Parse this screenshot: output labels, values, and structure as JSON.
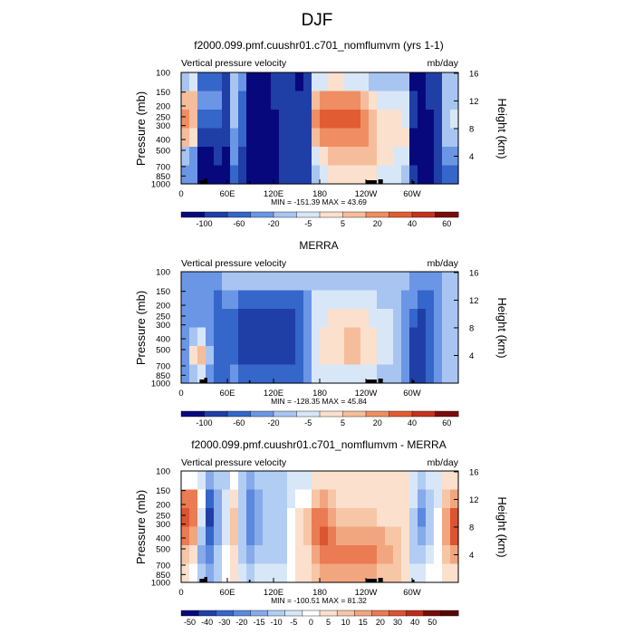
{
  "figure_title": "DJF",
  "chart_data": [
    {
      "type": "heatmap",
      "title": "f2000.099.pmf.cuushr01.c701_nomflumvm (yrs 1-1)",
      "left_label": "Vertical pressure velocity",
      "right_label": "mb/day",
      "ylabel": "Pressure (mb)",
      "ylabel_right": "Height (km)",
      "yticks": [
        "100",
        "150",
        "200",
        "250",
        "300",
        "400",
        "500",
        "700",
        "850",
        "1000"
      ],
      "yticks_right": [
        "4",
        "8",
        "12",
        "16"
      ],
      "xticks": [
        "0",
        "60E",
        "120E",
        "180",
        "120W",
        "60W"
      ],
      "stats": "MIN = -151.39   MAX = 43.69",
      "colorbar_labels": [
        "-100",
        "-60",
        "-20",
        "-5",
        "5",
        "20",
        "40",
        "60"
      ],
      "field": [
        [
          4,
          5,
          2,
          2,
          2,
          1,
          4,
          3,
          0,
          0,
          0,
          1,
          1,
          1,
          0,
          1,
          5,
          5,
          6,
          6,
          5,
          5,
          5,
          4,
          4,
          4,
          4,
          4,
          0,
          0,
          1,
          1,
          4,
          4
        ],
        [
          7,
          7,
          3,
          3,
          3,
          1,
          4,
          2,
          0,
          0,
          0,
          1,
          1,
          1,
          1,
          1,
          7,
          8,
          8,
          8,
          8,
          8,
          7,
          6,
          5,
          5,
          5,
          5,
          1,
          0,
          1,
          1,
          4,
          4
        ],
        [
          8,
          7,
          2,
          2,
          2,
          1,
          4,
          2,
          0,
          0,
          0,
          0,
          1,
          1,
          1,
          1,
          8,
          9,
          9,
          9,
          9,
          9,
          8,
          7,
          6,
          6,
          6,
          5,
          1,
          0,
          0,
          1,
          4,
          5
        ],
        [
          7,
          6,
          1,
          1,
          1,
          1,
          3,
          2,
          0,
          0,
          0,
          0,
          1,
          1,
          1,
          1,
          7,
          8,
          8,
          8,
          8,
          8,
          8,
          7,
          6,
          6,
          6,
          6,
          0,
          0,
          0,
          1,
          4,
          4
        ],
        [
          4,
          3,
          0,
          0,
          1,
          0,
          3,
          1,
          0,
          0,
          0,
          0,
          1,
          1,
          1,
          1,
          5,
          6,
          7,
          7,
          7,
          7,
          7,
          7,
          6,
          6,
          5,
          5,
          0,
          0,
          0,
          1,
          3,
          3
        ],
        [
          3,
          3,
          0,
          0,
          0,
          0,
          2,
          1,
          0,
          0,
          0,
          0,
          1,
          1,
          1,
          1,
          4,
          5,
          6,
          6,
          6,
          6,
          6,
          6,
          5,
          5,
          5,
          4,
          1,
          0,
          0,
          1,
          2,
          2
        ]
      ]
    },
    {
      "type": "heatmap",
      "title": "MERRA",
      "left_label": "Vertical pressure velocity",
      "right_label": "mb/day",
      "ylabel": "Pressure (mb)",
      "ylabel_right": "Height (km)",
      "yticks": [
        "100",
        "150",
        "200",
        "250",
        "300",
        "400",
        "500",
        "700",
        "850",
        "1000"
      ],
      "yticks_right": [
        "4",
        "8",
        "12",
        "16"
      ],
      "xticks": [
        "0",
        "60E",
        "120E",
        "180",
        "120W",
        "60W"
      ],
      "stats": "MIN = -128.35   MAX = 45.84",
      "colorbar_labels": [
        "-100",
        "-60",
        "-20",
        "-5",
        "5",
        "20",
        "40",
        "60"
      ],
      "field": [
        [
          3,
          3,
          3,
          3,
          3,
          4,
          4,
          4,
          4,
          4,
          4,
          4,
          4,
          4,
          4,
          4,
          4,
          4,
          4,
          4,
          4,
          4,
          4,
          4,
          4,
          4,
          4,
          4,
          3,
          3,
          3,
          3,
          4,
          4
        ],
        [
          3,
          3,
          3,
          3,
          2,
          3,
          3,
          2,
          2,
          2,
          2,
          2,
          2,
          2,
          2,
          3,
          5,
          5,
          5,
          5,
          5,
          5,
          5,
          5,
          4,
          4,
          4,
          3,
          3,
          2,
          2,
          3,
          4,
          4
        ],
        [
          3,
          3,
          3,
          3,
          2,
          2,
          2,
          1,
          1,
          1,
          1,
          1,
          1,
          1,
          2,
          3,
          5,
          5,
          6,
          6,
          6,
          6,
          6,
          5,
          5,
          5,
          4,
          3,
          2,
          1,
          2,
          3,
          4,
          4
        ],
        [
          3,
          4,
          5,
          3,
          2,
          2,
          2,
          1,
          1,
          1,
          1,
          1,
          1,
          1,
          2,
          3,
          5,
          6,
          6,
          6,
          7,
          7,
          6,
          6,
          5,
          5,
          4,
          3,
          1,
          1,
          2,
          3,
          4,
          4
        ],
        [
          3,
          6,
          7,
          4,
          2,
          2,
          2,
          1,
          1,
          1,
          1,
          1,
          1,
          1,
          2,
          3,
          5,
          6,
          6,
          6,
          7,
          7,
          6,
          6,
          5,
          5,
          4,
          3,
          1,
          1,
          2,
          3,
          4,
          4
        ],
        [
          3,
          4,
          5,
          3,
          2,
          2,
          3,
          2,
          2,
          2,
          2,
          2,
          2,
          2,
          2,
          3,
          5,
          5,
          5,
          5,
          5,
          5,
          5,
          5,
          4,
          4,
          4,
          3,
          1,
          1,
          2,
          3,
          4,
          4
        ]
      ]
    },
    {
      "type": "heatmap",
      "title": "f2000.099.pmf.cuushr01.c701_nomflumvm - MERRA",
      "left_label": "Vertical pressure velocity",
      "right_label": "mb/day",
      "ylabel": "Pressure (mb)",
      "ylabel_right": "Height (km)",
      "yticks": [
        "100",
        "150",
        "200",
        "250",
        "300",
        "400",
        "500",
        "700",
        "850",
        "1000"
      ],
      "yticks_right": [
        "4",
        "8",
        "12",
        "16"
      ],
      "xticks": [
        "0",
        "60E",
        "120E",
        "180",
        "120W",
        "60W"
      ],
      "stats": "MIN = -100.51   MAX = 81.32",
      "colorbar_labels": [
        "-50",
        "-40",
        "-30",
        "-20",
        "-15",
        "-10",
        "-5",
        "0",
        "5",
        "10",
        "15",
        "20",
        "30",
        "40",
        "50"
      ],
      "field": [
        [
          7,
          7,
          6,
          4,
          5,
          5,
          7,
          5,
          4,
          5,
          5,
          5,
          5,
          6,
          6,
          6,
          8,
          8,
          8,
          8,
          8,
          8,
          8,
          8,
          8,
          8,
          8,
          8,
          6,
          5,
          6,
          6,
          8,
          8
        ],
        [
          11,
          11,
          7,
          2,
          4,
          6,
          8,
          5,
          3,
          4,
          5,
          5,
          5,
          6,
          7,
          7,
          9,
          10,
          9,
          8,
          8,
          8,
          8,
          8,
          8,
          8,
          8,
          8,
          6,
          4,
          5,
          6,
          9,
          10
        ],
        [
          12,
          11,
          6,
          1,
          4,
          6,
          9,
          5,
          3,
          4,
          5,
          5,
          5,
          7,
          8,
          9,
          11,
          11,
          10,
          9,
          9,
          9,
          9,
          9,
          8,
          8,
          8,
          8,
          5,
          3,
          5,
          7,
          10,
          12
        ],
        [
          11,
          10,
          5,
          2,
          4,
          6,
          9,
          5,
          3,
          4,
          5,
          5,
          5,
          7,
          8,
          9,
          11,
          12,
          11,
          10,
          10,
          10,
          10,
          10,
          10,
          9,
          9,
          8,
          5,
          4,
          5,
          7,
          10,
          12
        ],
        [
          9,
          8,
          4,
          3,
          5,
          7,
          8,
          5,
          4,
          5,
          5,
          5,
          5,
          7,
          8,
          8,
          10,
          11,
          11,
          11,
          11,
          11,
          11,
          11,
          10,
          10,
          9,
          8,
          5,
          5,
          6,
          7,
          9,
          10
        ],
        [
          8,
          7,
          5,
          4,
          5,
          7,
          8,
          6,
          5,
          6,
          6,
          6,
          6,
          7,
          8,
          8,
          9,
          10,
          10,
          10,
          10,
          10,
          10,
          10,
          9,
          9,
          9,
          8,
          6,
          6,
          7,
          7,
          8,
          8
        ]
      ]
    }
  ],
  "colorbar_colors": {
    "full": [
      "#08087d",
      "#1f3fa6",
      "#3566c9",
      "#6b96e6",
      "#a8c5f2",
      "#d8e7f7",
      "#fbe0ce",
      "#f6bd9c",
      "#ef8e63",
      "#e25c33",
      "#c4331d",
      "#7a0b0b"
    ],
    "diff": [
      "#08087d",
      "#1f3fa6",
      "#3566c9",
      "#5c89df",
      "#86aaea",
      "#b2cdf3",
      "#d8e7f7",
      "#ffffff",
      "#fbe0ce",
      "#f6c6a7",
      "#f2a67f",
      "#ea7b52",
      "#dc5431",
      "#bb2e1c",
      "#7a0b0b",
      "#5a0505"
    ]
  }
}
